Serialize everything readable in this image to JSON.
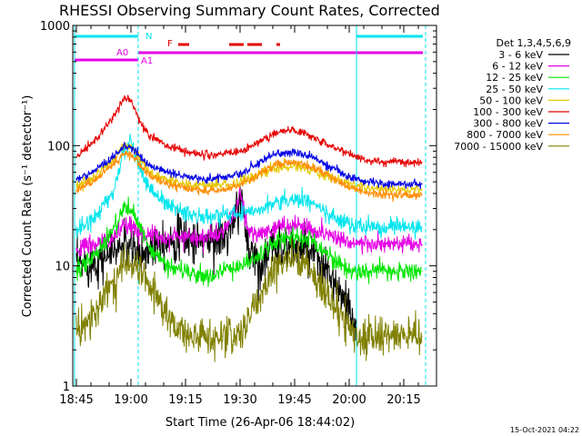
{
  "chart_data": {
    "type": "line",
    "title": "RHESSI Observing Summary Count Rates, Corrected",
    "xlabel": "Start Time (26-Apr-06 18:44:02)",
    "ylabel": "Corrected Count Rate (s⁻¹ detector⁻¹)",
    "y_scale": "log",
    "ylim": [
      1,
      1000
    ],
    "xlim": [
      "18:44",
      "20:24"
    ],
    "x_ticks": [
      "18:45",
      "19:00",
      "19:15",
      "19:30",
      "19:45",
      "20:00",
      "20:15"
    ],
    "x_tick_minutes": [
      0,
      15,
      30,
      45,
      60,
      75,
      90
    ],
    "y_ticks": [
      1,
      10,
      100,
      1000
    ],
    "y_tick_labels": [
      "1",
      "10",
      "100",
      "1000"
    ],
    "grid": false,
    "legend_placement": "right-outside",
    "legend_header": "Det 1,3,4,5,6,9",
    "timestamp": "15-Oct-2021 04:22",
    "attenuator_flags": [
      {
        "label": "N",
        "color": "#00e5ee"
      },
      {
        "label": "A0",
        "color": "#e600e6"
      },
      {
        "label": "A1",
        "color": "#e600e6"
      },
      {
        "label": "F",
        "color": "#e60000"
      }
    ],
    "series": [
      {
        "name": "3 - 6 keV",
        "color": "#000000",
        "x": [
          "18:45",
          "18:50",
          "18:55",
          "18:58",
          "19:00",
          "19:03",
          "19:08",
          "19:15",
          "19:20",
          "19:25",
          "19:28",
          "19:30",
          "19:32",
          "19:35",
          "19:40",
          "19:45",
          "19:50",
          "19:55",
          "20:00",
          "20:02"
        ],
        "y": [
          10,
          11,
          13,
          15,
          14,
          12,
          17,
          17,
          16,
          17,
          20,
          40,
          16,
          10,
          15,
          14,
          12,
          8,
          4,
          3
        ]
      },
      {
        "name": "6 - 12 keV",
        "color": "#e600e6",
        "x": [
          "18:45",
          "18:50",
          "18:55",
          "18:58",
          "19:00",
          "19:05",
          "19:10",
          "19:15",
          "19:20",
          "19:25",
          "19:28",
          "19:30",
          "19:32",
          "19:35",
          "19:40",
          "19:45",
          "19:50",
          "19:55",
          "20:00",
          "20:05",
          "20:10",
          "20:15",
          "20:20"
        ],
        "y": [
          14,
          15,
          17,
          21,
          21,
          18,
          17,
          18,
          17,
          19,
          25,
          40,
          20,
          18,
          21,
          22,
          20,
          18,
          16,
          15,
          15,
          15,
          15
        ]
      },
      {
        "name": "12 - 25 keV",
        "color": "#00e600",
        "x": [
          "18:45",
          "18:50",
          "18:55",
          "18:58",
          "19:00",
          "19:02",
          "19:05",
          "19:10",
          "19:15",
          "19:20",
          "19:25",
          "19:30",
          "19:35",
          "19:40",
          "19:45",
          "19:50",
          "19:55",
          "20:00",
          "20:05",
          "20:10",
          "20:15",
          "20:20"
        ],
        "y": [
          9,
          12,
          20,
          30,
          30,
          22,
          14,
          10,
          9,
          8,
          9,
          10,
          12,
          16,
          18,
          16,
          12,
          9,
          9,
          9,
          9,
          9
        ]
      },
      {
        "name": "25 - 50 keV",
        "color": "#00e5ee",
        "x": [
          "18:45",
          "18:50",
          "18:55",
          "18:58",
          "19:00",
          "19:02",
          "19:05",
          "19:10",
          "19:15",
          "19:20",
          "19:25",
          "19:30",
          "19:35",
          "19:40",
          "19:45",
          "19:50",
          "19:55",
          "20:00",
          "20:05",
          "20:10",
          "20:15",
          "20:20"
        ],
        "y": [
          20,
          25,
          40,
          90,
          110,
          70,
          45,
          32,
          28,
          25,
          26,
          28,
          30,
          34,
          36,
          33,
          26,
          22,
          21,
          21,
          21,
          21
        ]
      },
      {
        "name": "50 - 100 keV",
        "color": "#e6c800",
        "x": [
          "18:45",
          "18:50",
          "18:55",
          "18:58",
          "19:00",
          "19:02",
          "19:05",
          "19:10",
          "19:15",
          "19:20",
          "19:25",
          "19:30",
          "19:35",
          "19:40",
          "19:45",
          "19:50",
          "19:55",
          "20:00",
          "20:05",
          "20:10",
          "20:15",
          "20:20"
        ],
        "y": [
          45,
          55,
          75,
          100,
          100,
          80,
          60,
          52,
          48,
          46,
          47,
          50,
          57,
          65,
          68,
          63,
          55,
          48,
          44,
          43,
          43,
          43
        ]
      },
      {
        "name": "100 - 300 keV",
        "color": "#e60000",
        "x": [
          "18:45",
          "18:50",
          "18:55",
          "18:58",
          "19:00",
          "19:02",
          "19:05",
          "19:10",
          "19:15",
          "19:20",
          "19:25",
          "19:30",
          "19:35",
          "19:40",
          "19:45",
          "19:50",
          "19:55",
          "20:00",
          "20:05",
          "20:10",
          "20:15",
          "20:20"
        ],
        "y": [
          80,
          110,
          170,
          250,
          240,
          170,
          120,
          100,
          90,
          84,
          84,
          90,
          105,
          130,
          135,
          120,
          100,
          85,
          75,
          73,
          73,
          73
        ]
      },
      {
        "name": "300 - 800 keV",
        "color": "#0000e6",
        "x": [
          "18:45",
          "18:50",
          "18:55",
          "18:58",
          "19:00",
          "19:02",
          "19:05",
          "19:10",
          "19:15",
          "19:20",
          "19:25",
          "19:30",
          "19:35",
          "19:40",
          "19:45",
          "19:50",
          "19:55",
          "20:00",
          "20:05",
          "20:10",
          "20:15",
          "20:20"
        ],
        "y": [
          52,
          62,
          80,
          98,
          98,
          85,
          68,
          60,
          56,
          53,
          54,
          58,
          72,
          85,
          88,
          80,
          66,
          55,
          50,
          48,
          48,
          48
        ]
      },
      {
        "name": "800 - 7000 keV",
        "color": "#ff8c00",
        "x": [
          "18:45",
          "18:50",
          "18:55",
          "18:58",
          "19:00",
          "19:02",
          "19:05",
          "19:10",
          "19:15",
          "19:20",
          "19:25",
          "19:30",
          "19:35",
          "19:40",
          "19:45",
          "19:50",
          "19:55",
          "20:00",
          "20:05",
          "20:10",
          "20:15",
          "20:20"
        ],
        "y": [
          42,
          52,
          70,
          85,
          85,
          72,
          56,
          48,
          44,
          42,
          43,
          47,
          58,
          70,
          72,
          66,
          54,
          45,
          40,
          39,
          39,
          39
        ]
      },
      {
        "name": "7000 - 15000 keV",
        "color": "#808000",
        "x": [
          "18:45",
          "18:50",
          "18:55",
          "18:58",
          "19:00",
          "19:03",
          "19:08",
          "19:12",
          "19:15",
          "19:20",
          "19:25",
          "19:30",
          "19:35",
          "19:40",
          "19:45",
          "19:50",
          "19:55",
          "20:00",
          "20:02",
          "20:05",
          "20:10",
          "20:15",
          "20:20"
        ],
        "y": [
          3,
          4,
          7,
          11,
          11,
          9,
          5,
          3,
          2.6,
          2.6,
          2.6,
          2.6,
          5,
          10,
          12,
          9,
          5,
          3,
          2.6,
          2.6,
          2.6,
          2.6,
          2.6
        ]
      }
    ]
  }
}
